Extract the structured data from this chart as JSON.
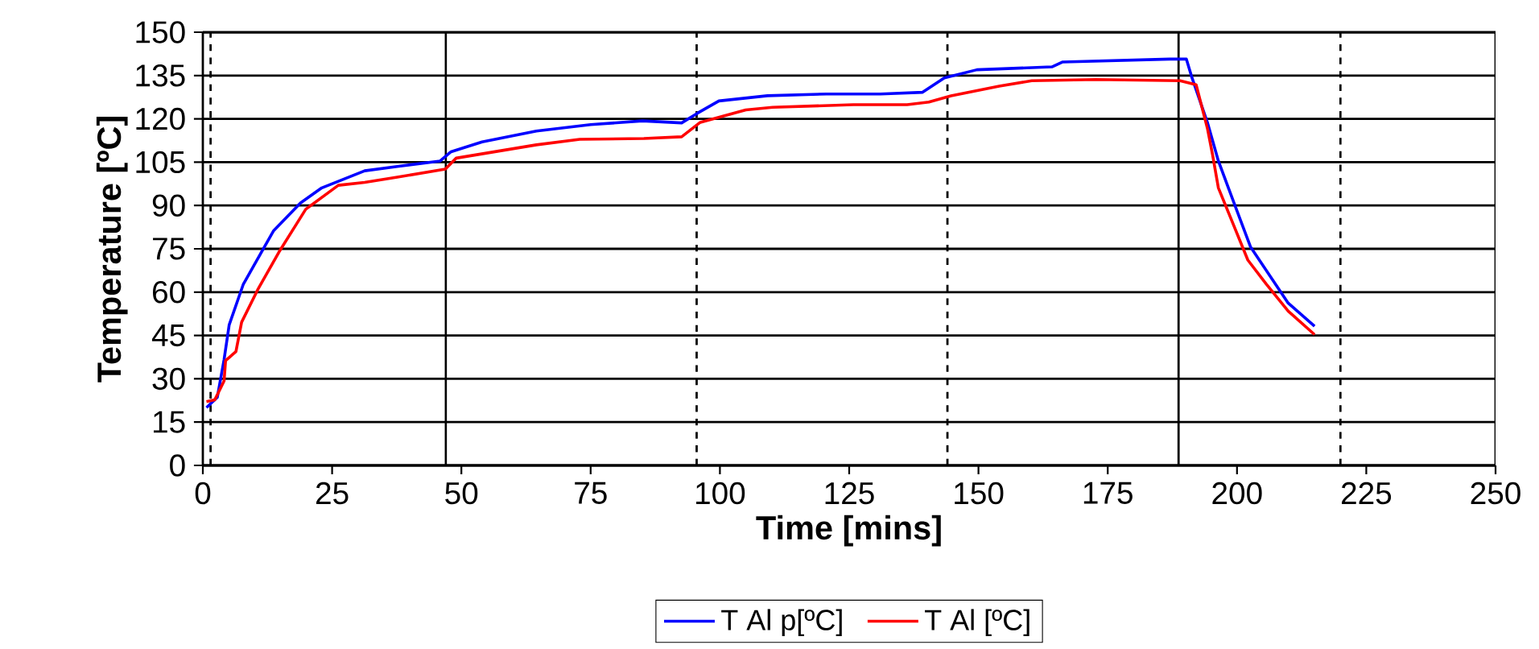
{
  "chart_data": {
    "type": "line",
    "xlabel": "Time [mins]",
    "ylabel": "Temperature [ºC]",
    "xlim": [
      0,
      250
    ],
    "ylim": [
      0,
      150
    ],
    "xticks": [
      0,
      25,
      50,
      75,
      100,
      125,
      150,
      175,
      200,
      225,
      250
    ],
    "yticks": [
      0,
      15,
      30,
      45,
      60,
      75,
      90,
      105,
      120,
      135,
      150
    ],
    "grid": "y",
    "legend": "bottom",
    "marker": "none",
    "line_style": "solid",
    "ref_lines": [
      {
        "axis": "x",
        "value": 1.5,
        "line_style": "dashed"
      },
      {
        "axis": "x",
        "value": 47,
        "line_style": "solid"
      },
      {
        "axis": "x",
        "value": 95.5,
        "line_style": "dashed"
      },
      {
        "axis": "x",
        "value": 144,
        "line_style": "dashed"
      },
      {
        "axis": "x",
        "value": 188.7,
        "line_style": "solid"
      },
      {
        "axis": "x",
        "value": 220,
        "line_style": "dashed"
      }
    ],
    "series": [
      {
        "name": "T Al p[ºC]",
        "color": "#0000ff",
        "x": [
          0.7,
          2.8,
          4.1,
          5.1,
          7.8,
          11.6,
          13.7,
          18.9,
          23,
          31.3,
          37.6,
          45.9,
          48,
          54,
          64.5,
          75,
          85,
          92.6,
          95.7,
          99.8,
          109.2,
          120.6,
          131,
          139.2,
          143.4,
          149.7,
          164.2,
          166.3,
          187,
          190.2,
          191.3,
          194.3,
          196.4,
          199.5,
          202.6,
          206.8,
          209.9,
          215
        ],
        "values": [
          20,
          23.6,
          36.6,
          48.7,
          62.6,
          74.7,
          81.3,
          90.9,
          96.1,
          102,
          103.5,
          105.4,
          108.6,
          112,
          115.8,
          118,
          119.3,
          118.6,
          122,
          126.2,
          128,
          128.6,
          128.6,
          129.2,
          134.2,
          137,
          138,
          139.7,
          140.7,
          140.7,
          134.2,
          118.6,
          105.4,
          90.5,
          75.7,
          64.5,
          56.2,
          48.2
        ]
      },
      {
        "name": "T Al [ºC]",
        "color": "#ff0000",
        "x": [
          0.7,
          2.3,
          4.1,
          4.4,
          6.4,
          7.5,
          10.6,
          14.7,
          19.9,
          26.2,
          31.3,
          37.6,
          46.9,
          49,
          64.5,
          72.9,
          85.3,
          92.6,
          96.2,
          105,
          110.2,
          125.8,
          136.2,
          140.4,
          144.7,
          154,
          160.3,
          172.7,
          189,
          192.1,
          194.3,
          195.3,
          196.4,
          202.1,
          205.7,
          209.9,
          215
        ],
        "values": [
          22.1,
          22.7,
          29.2,
          36.3,
          39.4,
          49.6,
          60.8,
          73.8,
          88.7,
          97,
          98,
          99.8,
          102.6,
          106.4,
          111,
          112.9,
          113.2,
          113.8,
          118.8,
          123.1,
          124,
          124.9,
          124.9,
          125.8,
          128,
          131.3,
          133.2,
          133.6,
          133.2,
          131.8,
          116.5,
          107.3,
          96.1,
          71.1,
          62.7,
          53.4,
          45.3
        ]
      }
    ]
  }
}
